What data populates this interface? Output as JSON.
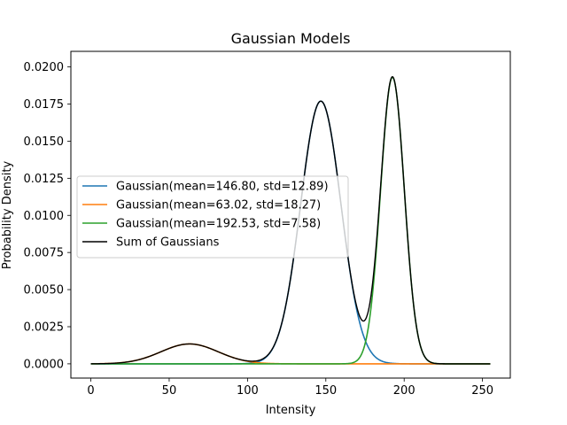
{
  "chart_data": {
    "type": "line",
    "title": "Gaussian Models",
    "xlabel": "Intensity",
    "ylabel": "Probability Density",
    "xlim": [
      -12.75,
      267.75
    ],
    "ylim": [
      -0.00096,
      0.02105
    ],
    "x_ticks": [
      0,
      50,
      100,
      150,
      200,
      250
    ],
    "x_tick_labels": [
      "0",
      "50",
      "100",
      "150",
      "200",
      "250"
    ],
    "y_ticks": [
      0.0,
      0.0025,
      0.005,
      0.0075,
      0.01,
      0.0125,
      0.015,
      0.0175,
      0.02
    ],
    "y_tick_labels": [
      "0.0000",
      "0.0025",
      "0.0050",
      "0.0075",
      "0.0100",
      "0.0125",
      "0.0150",
      "0.0175",
      "0.0200"
    ],
    "x_range": [
      0,
      255
    ],
    "grid": false,
    "legend_position": "center-left",
    "series": [
      {
        "name": "Gaussian(mean=146.80, std=12.89)",
        "mean": 146.8,
        "std": 12.89,
        "weight": 0.5718,
        "color": "#1f77b4"
      },
      {
        "name": "Gaussian(mean=63.02, std=18.27)",
        "mean": 63.02,
        "std": 18.27,
        "weight": 0.0613,
        "color": "#ff7f0e"
      },
      {
        "name": "Gaussian(mean=192.53, std=7.58)",
        "mean": 192.53,
        "std": 7.58,
        "weight": 0.3669,
        "color": "#2ca02c"
      },
      {
        "name": "Sum of Gaussians",
        "color": "#000000",
        "is_sum": true
      }
    ]
  }
}
